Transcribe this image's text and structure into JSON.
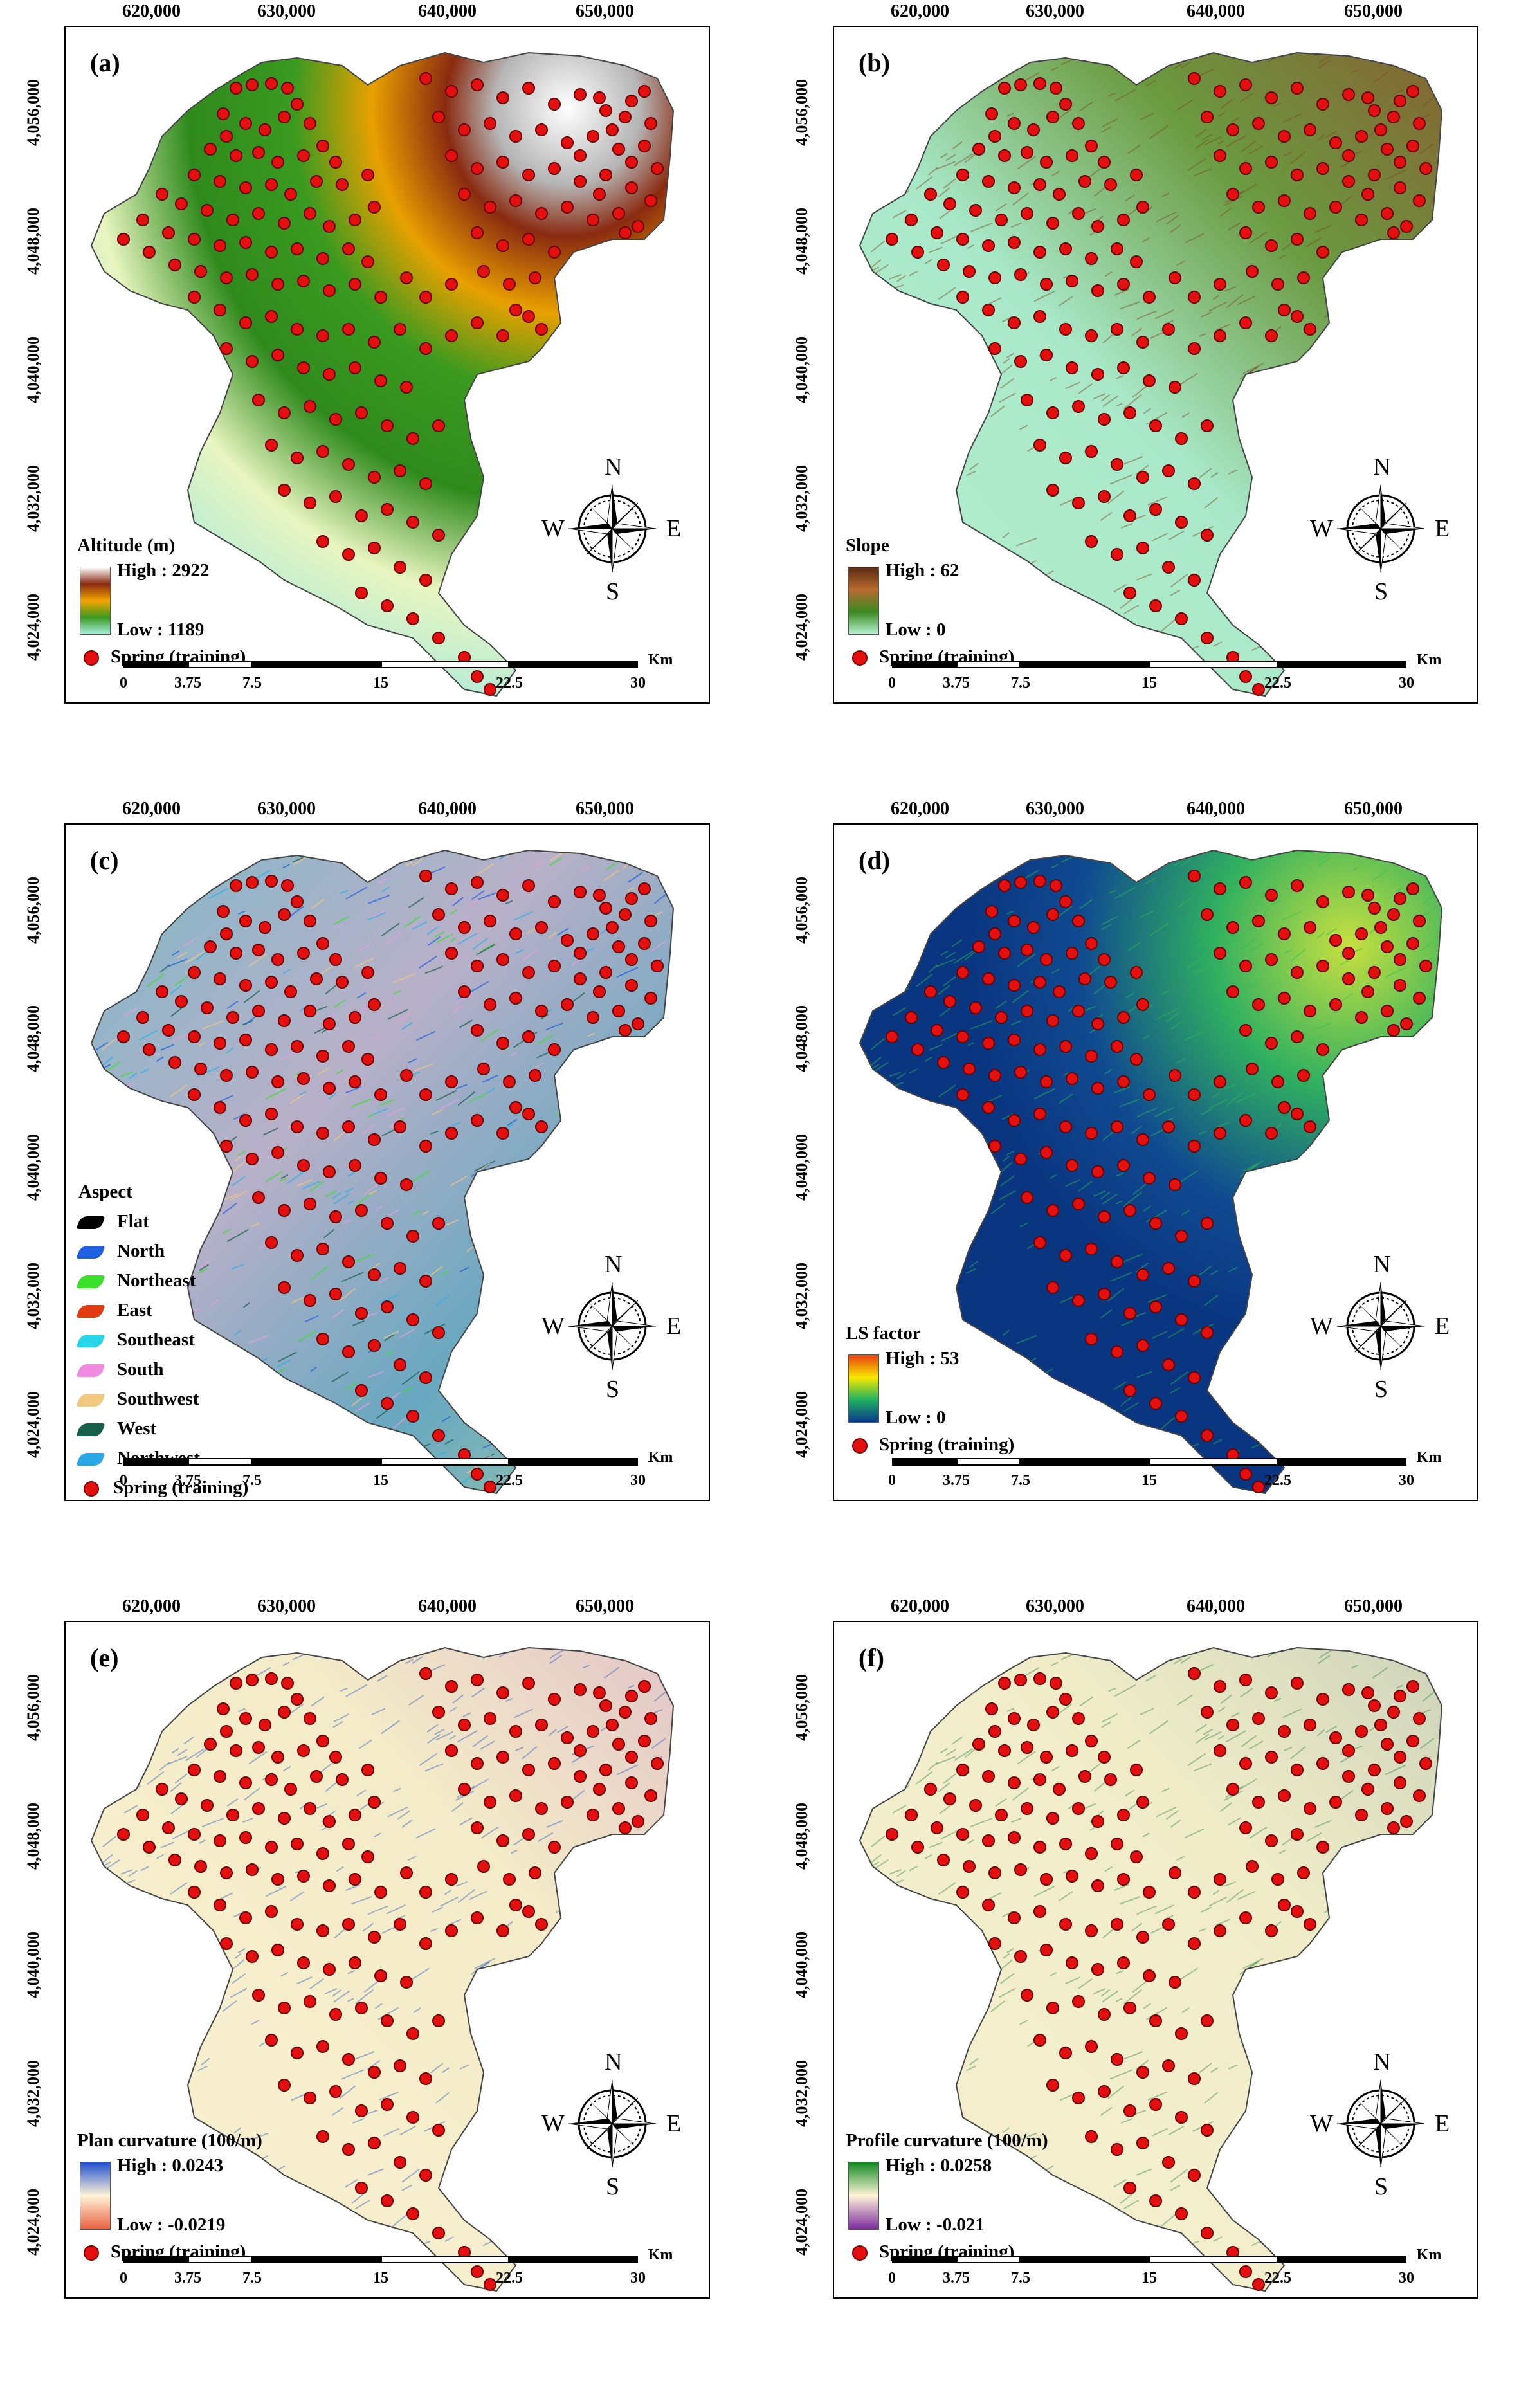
{
  "x_ticks": [
    "620,000",
    "630,000",
    "640,000",
    "650,000"
  ],
  "y_ticks": [
    "4,056,000",
    "4,048,000",
    "4,040,000",
    "4,032,000",
    "4,024,000"
  ],
  "scale": {
    "labels": [
      "0",
      "3.75",
      "7.5",
      "15",
      "22.5",
      "30"
    ],
    "unit": "Km"
  },
  "compass": {
    "n": "N",
    "s": "S",
    "e": "E",
    "w": "W"
  },
  "spring_label": "Spring (training)",
  "panels": [
    {
      "id": "a",
      "label": "(a)",
      "legend_title": "Altitude (m)",
      "high": "High : 2922",
      "low": "Low : 1189",
      "gradient": [
        "#ffffff",
        "#8a2a10",
        "#f2a400",
        "#3a9a20",
        "#a8f0e0"
      ],
      "base": "altitude"
    },
    {
      "id": "b",
      "label": "(b)",
      "legend_title": "Slope",
      "high": "High : 62",
      "low": "Low : 0",
      "gradient": [
        "#5a2a10",
        "#b86a30",
        "#3a8a20",
        "#b8f0d0"
      ],
      "base": "slope"
    },
    {
      "id": "c",
      "label": "(c)",
      "legend_title": "Aspect",
      "base": "aspect",
      "aspect_classes": [
        {
          "name": "Flat",
          "color": "#000000"
        },
        {
          "name": "North",
          "color": "#1f5fe0"
        },
        {
          "name": "Northeast",
          "color": "#3ae02a"
        },
        {
          "name": "East",
          "color": "#e23a10"
        },
        {
          "name": "Southeast",
          "color": "#27d6e8"
        },
        {
          "name": "South",
          "color": "#f08ae0"
        },
        {
          "name": "Southwest",
          "color": "#f2c880"
        },
        {
          "name": "West",
          "color": "#17604a"
        },
        {
          "name": "Northwest",
          "color": "#2aa8e8"
        }
      ]
    },
    {
      "id": "d",
      "label": "(d)",
      "legend_title": "LS factor",
      "high": "High : 53",
      "low": "Low : 0",
      "gradient": [
        "#e84010",
        "#f8e800",
        "#20b060",
        "#0a3a90"
      ],
      "base": "ls"
    },
    {
      "id": "e",
      "label": "(e)",
      "legend_title": "Plan curvature (100/m)",
      "high": "High : 0.0243",
      "low": "Low : -0.0219",
      "gradient": [
        "#2050d0",
        "#fff4d8",
        "#e86040"
      ],
      "base": "plan"
    },
    {
      "id": "f",
      "label": "(f)",
      "legend_title": "Profile curvature (100/m)",
      "high": "High : 0.0258",
      "low": "Low : -0.021",
      "gradient": [
        "#108a20",
        "#fff4d8",
        "#7a2aa0"
      ],
      "base": "profile"
    }
  ]
}
